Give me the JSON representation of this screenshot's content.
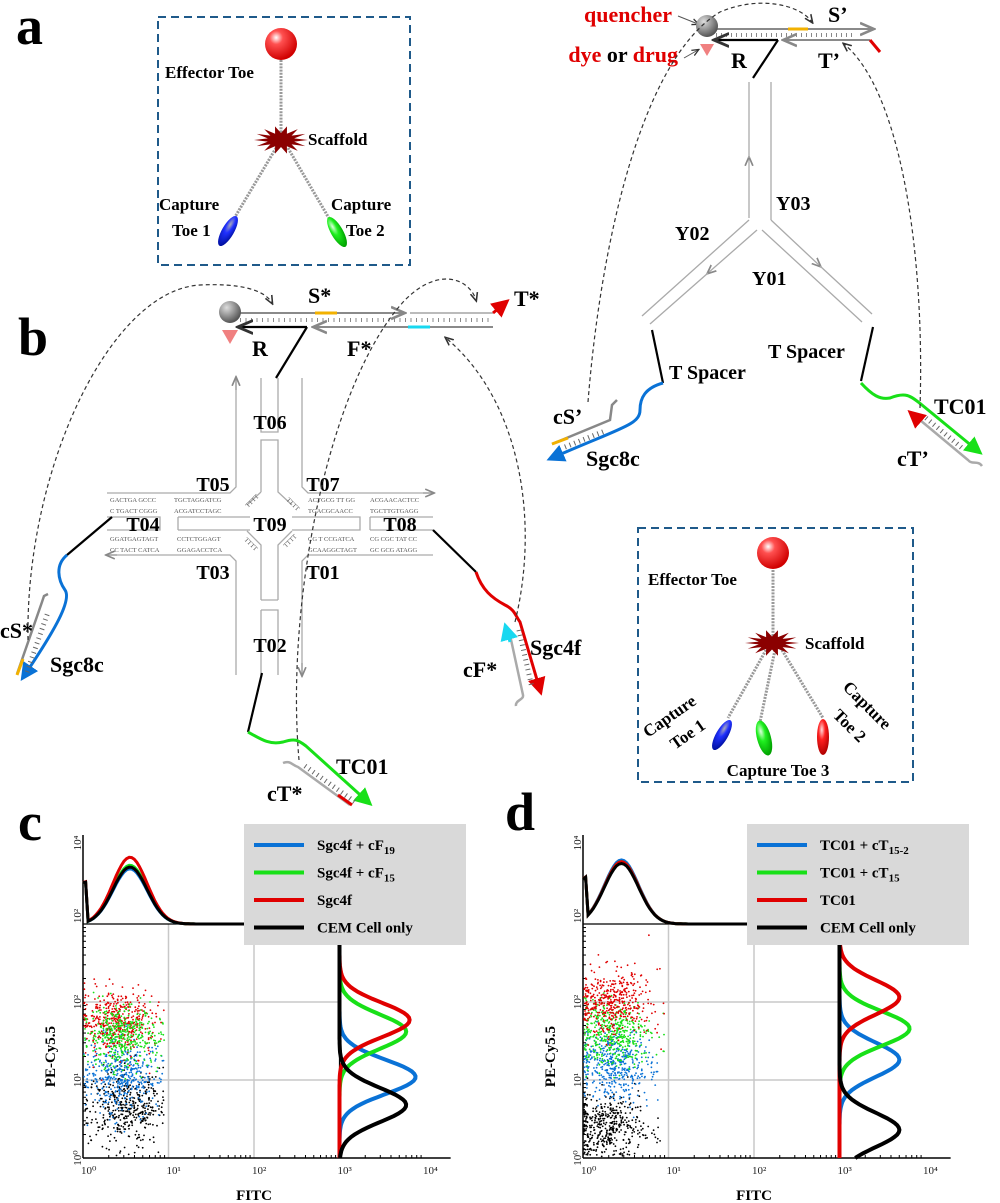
{
  "panel_labels": {
    "a": "a",
    "b": "b",
    "c": "c",
    "d": "d"
  },
  "colors": {
    "red": "#e00000",
    "blue": "#0a72d6",
    "green": "#18e018",
    "orange": "#f2b100",
    "cyan": "#18d8f0",
    "scaffold": "#8b0000",
    "box": "#1f5a8a"
  },
  "box_a": {
    "effector_toe": "Effector Toe",
    "scaffold": "Scaffold",
    "capture1_line1": "Capture",
    "capture1_line2": "Toe 1",
    "capture2_line1": "Capture",
    "capture2_line2": "Toe 2"
  },
  "y_construct": {
    "quencher": "quencher",
    "dye": "dye",
    "or": "or",
    "drug": "drug",
    "s_prime": "S’",
    "t_prime": "T’",
    "r": "R",
    "y01": "Y01",
    "y02": "Y02",
    "y03": "Y03",
    "spacer_left": "T Spacer",
    "spacer_right": "T Spacer",
    "sgc8c": "Sgc8c",
    "cs_prime": "cS’",
    "tc01": "TC01",
    "ct_prime": "cT’"
  },
  "x_construct": {
    "s_star": "S*",
    "f_star": "F*",
    "t_star": "T*",
    "r": "R",
    "t01": "T01",
    "t02": "T02",
    "t03": "T03",
    "t04": "T04",
    "t05": "T05",
    "t06": "T06",
    "t07": "T07",
    "t08": "T08",
    "t09": "T09",
    "sgc8c": "Sgc8c",
    "cs_star": "cS*",
    "sgc4f": "Sgc4f",
    "cf_star": "cF*",
    "tc01": "TC01",
    "ct_star": "cT*",
    "sequences": {
      "left_top_1a": "GACTGA GCCC",
      "left_top_1b": "TGCTAGGATCG",
      "left_top_2a": "C TGACT CGGG",
      "left_top_2b": "ACGATCCTAGC",
      "left_bot_1a": "GGATGAGTAGT",
      "left_bot_1b": "CCTCTGGAGT",
      "left_bot_2a": "CC TACT CATCA",
      "left_bot_2b": "GGAGACCTCA",
      "right_top_1a": "ACTGCG TT GG",
      "right_top_1b": "ACGAACACTCC",
      "right_top_2a": "TGACGCAACC",
      "right_top_2b": "TGCTTGTGAGG",
      "right_bot_1a": "CG T CCGATCA",
      "right_bot_1b": "CG CGC TAT CC",
      "right_bot_2a": "GCAAGGCTAGT",
      "right_bot_2b": "GC GCG ATAGG",
      "linker": "TTTT"
    }
  },
  "box_b": {
    "effector_toe": "Effector Toe",
    "scaffold": "Scaffold",
    "capture1_line1": "Capture",
    "capture1_line2": "Toe 1",
    "capture2_line1": "Capture",
    "capture2_line2": "Toe 2",
    "capture3": "Capture Toe 3"
  },
  "chart_data": [
    {
      "id": "c",
      "type": "scatter",
      "xlabel": "FITC",
      "ylabel": "PE-Cy5.5",
      "xscale": "log",
      "yscale": "log",
      "xlim": [
        1,
        10000
      ],
      "ylim": [
        1,
        1000
      ],
      "x_ticks": [
        "10⁰",
        "10¹",
        "10²",
        "10³",
        "10⁴"
      ],
      "y_ticks": [
        "10⁰",
        "10¹",
        "10²"
      ],
      "top_hist_ticks": [
        "10²",
        "10⁴"
      ],
      "grid": true,
      "legend_position": "top-right",
      "series": [
        {
          "name": "Sgc4f + cF",
          "sub": "19",
          "color": "#0a72d6",
          "center_log_fitc": 0.45,
          "center_log_pe": 1.05,
          "spread_log_pe": 0.25,
          "hist_peak_log_pe": 1.04,
          "hist_peak_rel": 0.89,
          "top_hist_peak_rel": 0.62
        },
        {
          "name": "Sgc4f + cF",
          "sub": "15",
          "color": "#18e018",
          "center_log_fitc": 0.45,
          "center_log_pe": 1.55,
          "spread_log_pe": 0.2,
          "hist_peak_log_pe": 1.62,
          "hist_peak_rel": 0.78,
          "top_hist_peak_rel": 0.66
        },
        {
          "name": "Sgc4f",
          "sub": "",
          "color": "#e00000",
          "center_log_fitc": 0.4,
          "center_log_pe": 1.75,
          "spread_log_pe": 0.2,
          "hist_peak_log_pe": 1.77,
          "hist_peak_rel": 0.82,
          "top_hist_peak_rel": 0.75
        },
        {
          "name": "CEM Cell only",
          "sub": "",
          "color": "#000000",
          "center_log_fitc": 0.5,
          "center_log_pe": 0.65,
          "spread_log_pe": 0.25,
          "hist_peak_log_pe": 0.68,
          "hist_peak_rel": 0.78,
          "top_hist_peak_rel": 0.64
        }
      ],
      "draw_order": [
        3,
        0,
        2,
        1
      ],
      "top_hist_peak_log_fitc": 0.55
    },
    {
      "id": "d",
      "type": "scatter",
      "xlabel": "FITC",
      "ylabel": "PE-Cy5.5",
      "xscale": "log",
      "yscale": "log",
      "xlim": [
        1,
        10000
      ],
      "ylim": [
        1,
        1000
      ],
      "x_ticks": [
        "10⁰",
        "10¹",
        "10²",
        "10³",
        "10⁴"
      ],
      "y_ticks": [
        "10⁰",
        "10¹",
        "10²"
      ],
      "top_hist_ticks": [
        "10²",
        "10⁴"
      ],
      "grid": true,
      "legend_position": "top-right",
      "series": [
        {
          "name": "TC01 + cT",
          "sub": "15-2",
          "color": "#0a72d6",
          "center_log_fitc": 0.35,
          "center_log_pe": 1.2,
          "spread_log_pe": 0.22,
          "hist_peak_log_pe": 1.26,
          "hist_peak_rel": 0.7,
          "top_hist_peak_rel": 0.72
        },
        {
          "name": "TC01 + cT",
          "sub": "15",
          "color": "#18e018",
          "center_log_fitc": 0.35,
          "center_log_pe": 1.6,
          "spread_log_pe": 0.2,
          "hist_peak_log_pe": 1.66,
          "hist_peak_rel": 0.82,
          "top_hist_peak_rel": 0.7
        },
        {
          "name": "TC01",
          "sub": "",
          "color": "#e00000",
          "center_log_fitc": 0.35,
          "center_log_pe": 2.0,
          "spread_log_pe": 0.2,
          "hist_peak_log_pe": 2.06,
          "hist_peak_rel": 0.7,
          "top_hist_peak_rel": 0.7
        },
        {
          "name": "CEM Cell only",
          "sub": "",
          "color": "#000000",
          "center_log_fitc": 0.3,
          "center_log_pe": 0.4,
          "spread_log_pe": 0.22,
          "hist_peak_log_pe": 0.36,
          "hist_peak_rel": 0.7,
          "top_hist_peak_rel": 0.68
        }
      ],
      "draw_order": [
        3,
        0,
        1,
        2
      ],
      "top_hist_peak_log_fitc": 0.45
    }
  ]
}
